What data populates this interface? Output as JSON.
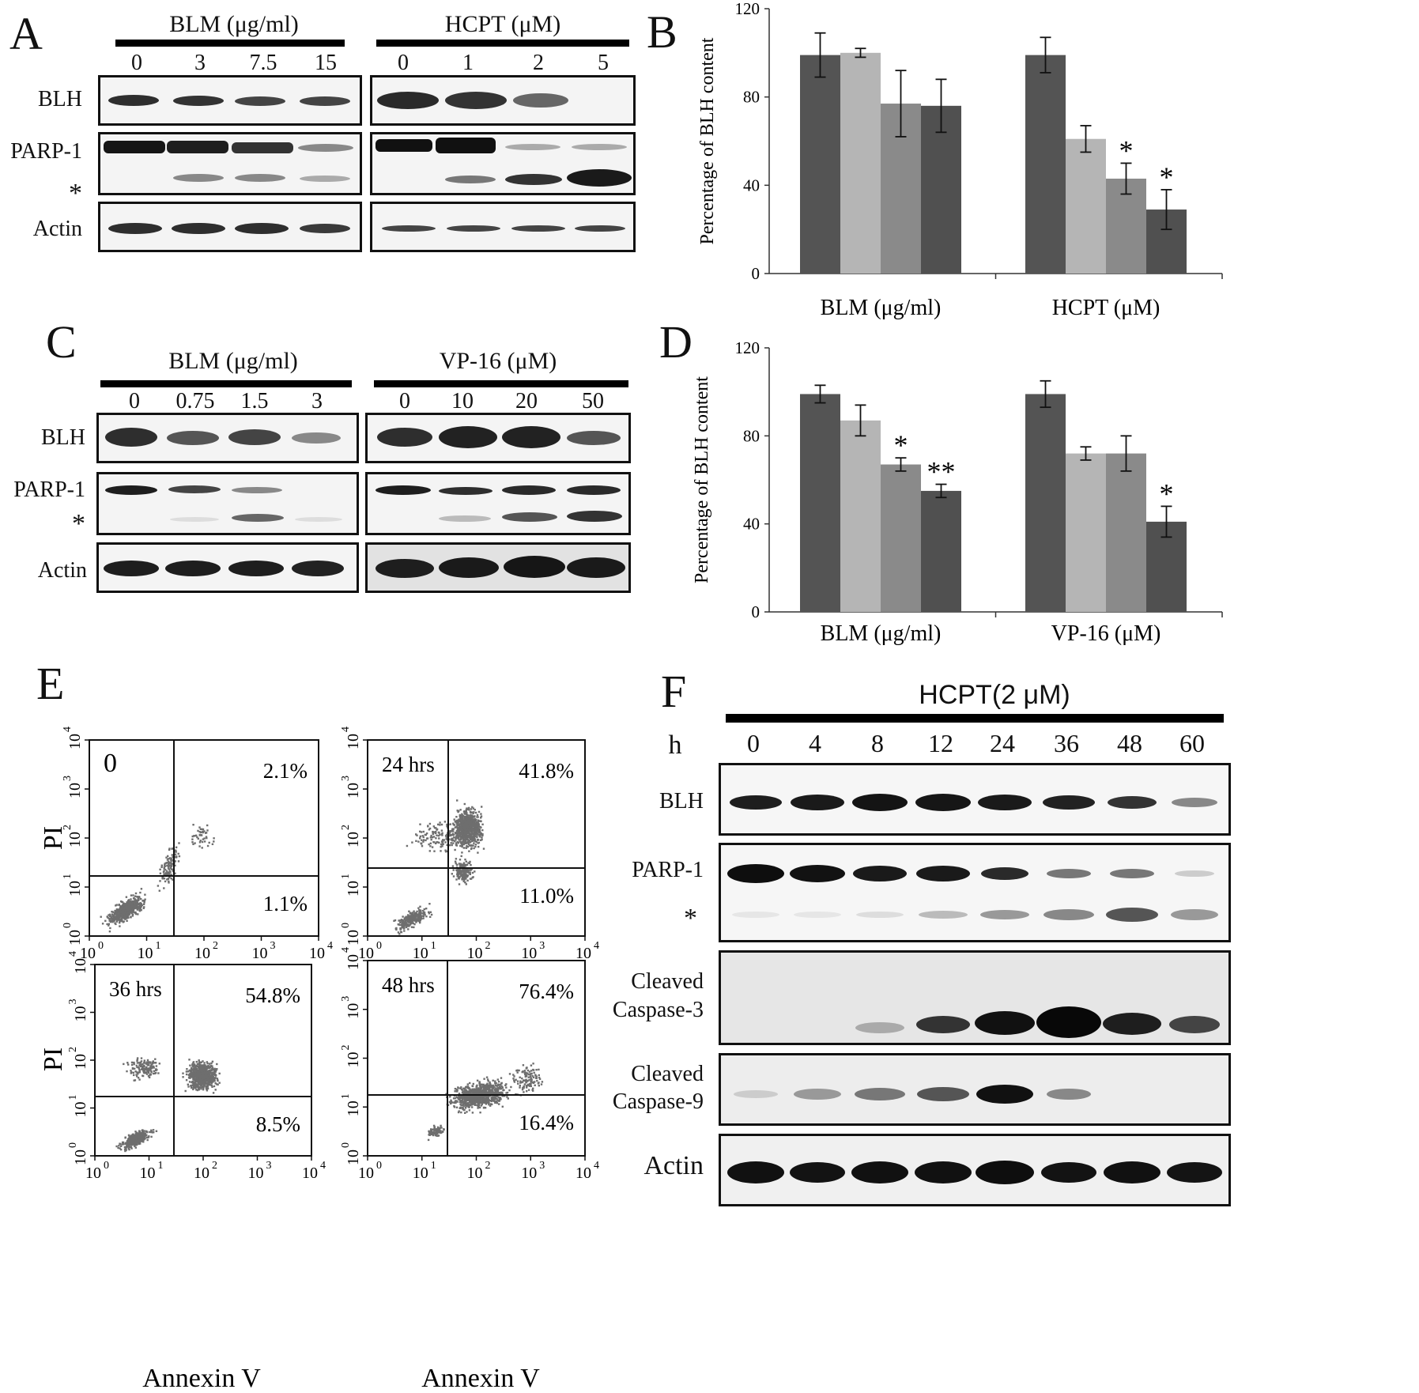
{
  "panels": {
    "A": {
      "letter": "A",
      "groups": [
        {
          "title": "BLM  (μg/ml)",
          "lanes": [
            "0",
            "3",
            "7.5",
            "15"
          ]
        },
        {
          "title": "HCPT  (μM)",
          "lanes": [
            "0",
            "1",
            "2",
            "5"
          ]
        }
      ],
      "rows": [
        "BLH",
        "PARP-1",
        "*",
        "Actin"
      ]
    },
    "B": {
      "letter": "B",
      "chart_data": {
        "type": "bar",
        "ylabel": "Percentage of BLH content",
        "ylim": [
          0,
          120
        ],
        "yticks": [
          0,
          40,
          80,
          120
        ],
        "groups": [
          {
            "label": "BLM  (μg/ml)",
            "values": [
              99,
              100,
              77,
              76
            ],
            "errors": [
              10,
              2,
              15,
              12
            ],
            "sig": [
              "",
              "",
              "",
              ""
            ]
          },
          {
            "label": "HCPT  (μM)",
            "values": [
              99,
              61,
              43,
              29
            ],
            "errors": [
              8,
              6,
              7,
              9
            ],
            "sig": [
              "",
              "",
              "*",
              "*"
            ]
          }
        ],
        "colors": [
          "#545454",
          "#b5b5b5",
          "#8a8a8a",
          "#505050"
        ]
      }
    },
    "C": {
      "letter": "C",
      "groups": [
        {
          "title": "BLM  (μg/ml)",
          "lanes": [
            "0",
            "0.75",
            "1.5",
            "3"
          ]
        },
        {
          "title": "VP-16  (μM)",
          "lanes": [
            "0",
            "10",
            "20",
            "50"
          ]
        }
      ],
      "rows": [
        "BLH",
        "PARP-1",
        "*",
        "Actin"
      ]
    },
    "D": {
      "letter": "D",
      "chart_data": {
        "type": "bar",
        "ylabel": "Percentage of BLH content",
        "ylim": [
          0,
          120
        ],
        "yticks": [
          0,
          40,
          80,
          120
        ],
        "groups": [
          {
            "label": "BLM  (μg/ml)",
            "values": [
              99,
              87,
              67,
              55
            ],
            "errors": [
              4,
              7,
              3,
              3
            ],
            "sig": [
              "",
              "",
              "*",
              "**"
            ]
          },
          {
            "label": "VP-16  (μM)",
            "values": [
              99,
              72,
              72,
              41
            ],
            "errors": [
              6,
              3,
              8,
              7
            ],
            "sig": [
              "",
              "",
              "",
              "*"
            ]
          }
        ],
        "colors": [
          "#545454",
          "#b5b5b5",
          "#8a8a8a",
          "#505050"
        ]
      }
    },
    "E": {
      "letter": "E",
      "xlabel": "Annexin V",
      "ylabel": "PI",
      "ticks": [
        "10",
        "0",
        "10",
        "1",
        "10",
        "2",
        "10",
        "3",
        "10",
        "4"
      ],
      "plots": [
        {
          "label": "0",
          "upper_right": "2.1%",
          "lower_right": "1.1%"
        },
        {
          "label": "24 hrs",
          "upper_right": "41.8%",
          "lower_right": "11.0%"
        },
        {
          "label": "36 hrs",
          "upper_right": "54.8%",
          "lower_right": "8.5%"
        },
        {
          "label": "48 hrs",
          "upper_right": "76.4%",
          "lower_right": "16.4%"
        }
      ]
    },
    "F": {
      "letter": "F",
      "title": "HCPT(2 μM)",
      "h_label": "h",
      "lanes": [
        "0",
        "4",
        "8",
        "12",
        "24",
        "36",
        "48",
        "60"
      ],
      "rows": [
        "BLH",
        "PARP-1",
        "*",
        "Cleaved",
        "Caspase-3",
        "Cleaved",
        "Caspase-9",
        "Actin"
      ]
    }
  }
}
